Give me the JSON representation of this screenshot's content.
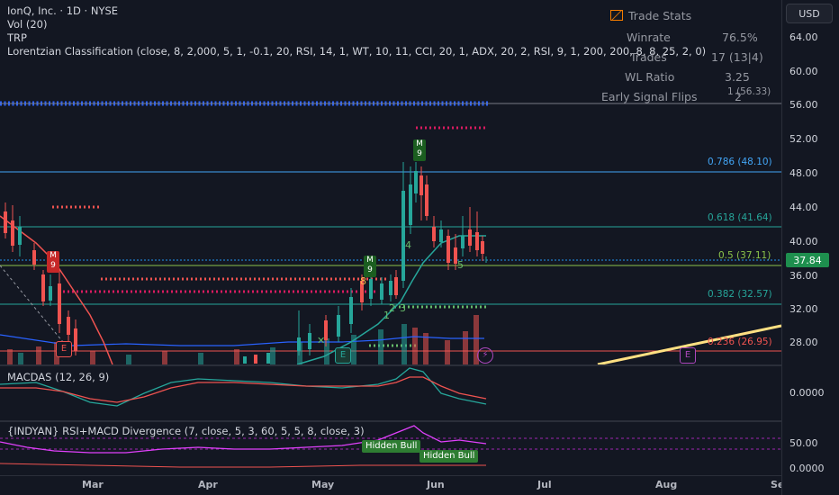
{
  "header": {
    "symbol_line": "IonQ, Inc. · 1D · NYSE",
    "indicator_1": "Vol (20)",
    "indicator_2": "TRP",
    "indicator_3": "Lorentzian Classification (close, 8, 2,000, 5, 1, -0.1, 20, RSI, 14, 1, WT, 10, 11, CCI, 20, 1, ADX, 20, 2, RSI, 9, 1, 200, 200, 8, 8, 25, 2, 0)"
  },
  "currency_button": "USD",
  "trade_stats": {
    "title": "Trade Stats",
    "winrate_label": "Winrate",
    "winrate_value": "76.5%",
    "trades_label": "Trades",
    "trades_value": "17 (13|4)",
    "wl_label": "WL Ratio",
    "wl_value": "3.25",
    "flips_label": "Early Signal Flips",
    "flips_value": "2"
  },
  "price_axis": {
    "labels": [
      "64.00",
      "60.00",
      "56.00",
      "52.00",
      "48.00",
      "44.00",
      "40.00",
      "36.00",
      "32.00",
      "28.00"
    ],
    "current_price": "37.84"
  },
  "fib_levels": [
    {
      "label": "1 (56.33)",
      "color": "#9598a1"
    },
    {
      "label": "0.786 (48.10)",
      "color": "#42a5f5"
    },
    {
      "label": "0.618 (41.64)",
      "color": "#26a69a"
    },
    {
      "label": "0.5 (37.11)",
      "color": "#8bc34a"
    },
    {
      "label": "0.382 (32.57)",
      "color": "#26a69a"
    },
    {
      "label": "0.236 (26.95)",
      "color": "#ef5350"
    }
  ],
  "macd_pane": {
    "title": "MACDAS (12, 26, 9)",
    "axis_label": "0.0000"
  },
  "rsi_pane": {
    "title": "{INDYAN} RSI+MACD Divergence (7, close, 5, 3, 60, 5, 5, 8, close, 3)",
    "axis_50": "50.00",
    "axis_0": "0.0000",
    "badge_1": "Hidden Bull",
    "badge_2": "Hidden Bull"
  },
  "time_axis": [
    "Mar",
    "Apr",
    "May",
    "Jun",
    "Jul",
    "Aug",
    "Se"
  ],
  "markers": {
    "m9": "M",
    "m9_num": "9",
    "e": "E"
  },
  "colors": {
    "background": "#131722",
    "up": "#26a69a",
    "down": "#ef5350",
    "blue_dots": "#2962ff",
    "accent": "#2196f3"
  }
}
